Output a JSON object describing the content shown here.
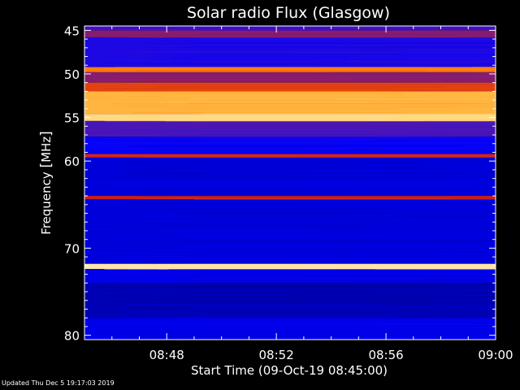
{
  "chart_data": {
    "type": "heatmap",
    "title": "Solar radio Flux (Glasgow)",
    "ylabel_prefix": "Frequency ",
    "ylabel_unit": "MHz",
    "xlabel": "Start Time (09-Oct-19 08:45:00)",
    "x_range_minutes": [
      0,
      15
    ],
    "y_range_mhz": [
      44.5,
      80.5
    ],
    "x_ticks": [
      {
        "minute": 3,
        "label": "08:48"
      },
      {
        "minute": 7,
        "label": "08:52"
      },
      {
        "minute": 11,
        "label": "08:56"
      },
      {
        "minute": 15,
        "label": "09:00"
      }
    ],
    "y_ticks": [
      {
        "mhz": 45,
        "label": "45"
      },
      {
        "mhz": 50,
        "label": "50"
      },
      {
        "mhz": 55,
        "label": "55"
      },
      {
        "mhz": 60,
        "label": "60"
      },
      {
        "mhz": 70,
        "label": "70"
      },
      {
        "mhz": 80,
        "label": "80"
      }
    ],
    "y_minor_step_mhz": 1,
    "x_minor_step_minutes": 1,
    "colormap": [
      "#000080",
      "#0000ff",
      "#5a1aa8",
      "#c81e1e",
      "#ff6a00",
      "#ffc850",
      "#fff0c8"
    ],
    "intensity_bands": [
      {
        "from_mhz": 44.5,
        "to_mhz": 45.0,
        "level": 0.28
      },
      {
        "from_mhz": 45.0,
        "to_mhz": 45.8,
        "level": 0.4
      },
      {
        "from_mhz": 45.8,
        "to_mhz": 49.2,
        "level": 0.22
      },
      {
        "from_mhz": 49.2,
        "to_mhz": 49.8,
        "level": 0.7
      },
      {
        "from_mhz": 49.8,
        "to_mhz": 51.0,
        "level": 0.4
      },
      {
        "from_mhz": 51.0,
        "to_mhz": 52.0,
        "level": 0.58
      },
      {
        "from_mhz": 52.0,
        "to_mhz": 54.6,
        "level": 0.8
      },
      {
        "from_mhz": 54.6,
        "to_mhz": 55.4,
        "level": 0.9
      },
      {
        "from_mhz": 55.4,
        "to_mhz": 57.2,
        "level": 0.3
      },
      {
        "from_mhz": 57.2,
        "to_mhz": 59.2,
        "level": 0.18
      },
      {
        "from_mhz": 59.2,
        "to_mhz": 59.6,
        "level": 0.52
      },
      {
        "from_mhz": 59.6,
        "to_mhz": 64.0,
        "level": 0.12
      },
      {
        "from_mhz": 64.0,
        "to_mhz": 64.4,
        "level": 0.5
      },
      {
        "from_mhz": 64.4,
        "to_mhz": 71.8,
        "level": 0.12
      },
      {
        "from_mhz": 71.8,
        "to_mhz": 72.4,
        "level": 0.96
      },
      {
        "from_mhz": 72.4,
        "to_mhz": 74.0,
        "level": 0.14
      },
      {
        "from_mhz": 74.0,
        "to_mhz": 78.0,
        "level": 0.07
      },
      {
        "from_mhz": 78.0,
        "to_mhz": 80.5,
        "level": 0.14
      }
    ],
    "grid": false,
    "legend": "none",
    "colorbar": false
  },
  "footer": "Updated Thu Dec  5 19:17:03 2019",
  "colors": {
    "background": "#000000",
    "text": "#ffffff",
    "axis": "#ffffff"
  }
}
